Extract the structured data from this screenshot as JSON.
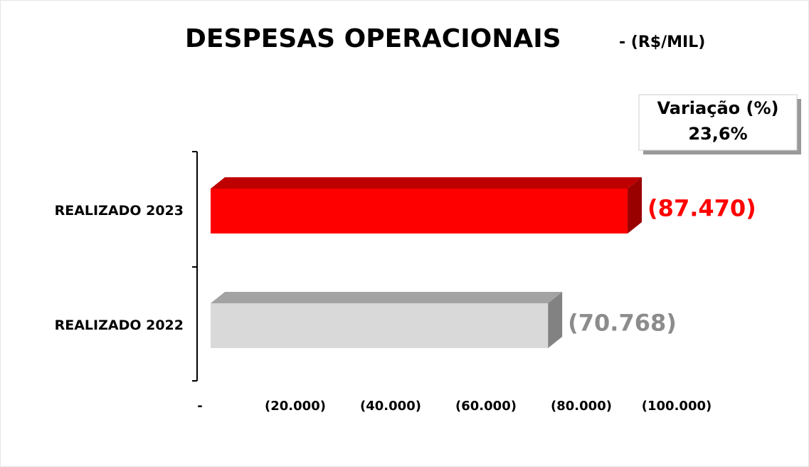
{
  "chart_data": {
    "type": "bar",
    "orientation": "horizontal",
    "title": "DESPESAS OPERACIONAIS",
    "subtitle": "- (R$/MIL)",
    "categories": [
      "REALIZADO 2023",
      "REALIZADO 2022"
    ],
    "values": [
      -87470,
      -70768
    ],
    "value_labels": [
      "(87.470)",
      "(70.768)"
    ],
    "colors": [
      "#ff0000",
      "#d9d9d9"
    ],
    "label_colors": [
      "#ff0000",
      "#8c8c8c"
    ],
    "xlim": [
      0,
      -100000
    ],
    "xticks": [
      {
        "value": 0,
        "label": "-"
      },
      {
        "value": -20000,
        "label": "(20.000)"
      },
      {
        "value": -40000,
        "label": "(40.000)"
      },
      {
        "value": -60000,
        "label": "(60.000)"
      },
      {
        "value": -80000,
        "label": "(80.000)"
      },
      {
        "value": -100000,
        "label": "(100.000)"
      }
    ],
    "annotation": {
      "title": "Variação (%)",
      "text": "23,6%"
    }
  }
}
